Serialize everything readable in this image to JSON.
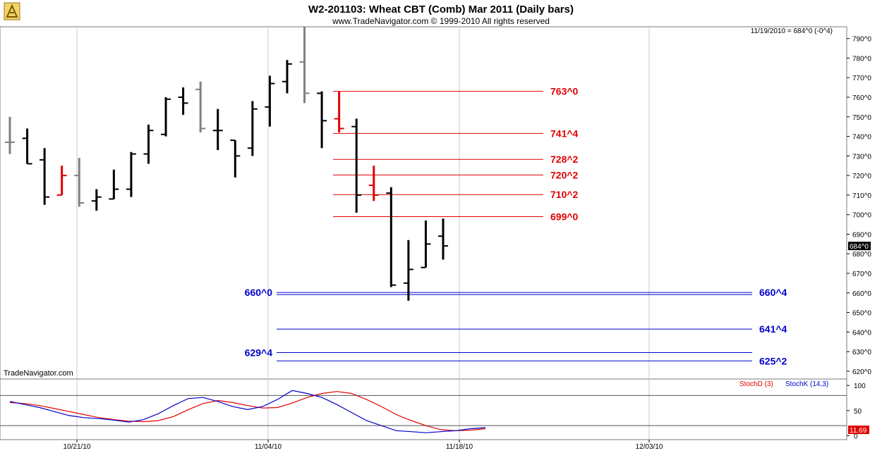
{
  "header": {
    "title": "W2-201103:  Wheat CBT (Comb) Mar 2011  (Daily bars)",
    "copyright": "www.TradeNavigator.com © 1999-2010 All rights reserved",
    "last_info": "11/19/2010 = 684^0 (-0^4)",
    "watermark": "TradeNavigator.com"
  },
  "logo_icon": "trade-navigator-logo-icon",
  "colors": {
    "up": "#000000",
    "down": "#808080",
    "red_bar": "#e00000",
    "resistance": "#e00000",
    "support": "#0000cc",
    "stoch_d": "#e00000",
    "stoch_k": "#0000cc",
    "last_tag_bg": "#000000",
    "stoch_tag_bg": "#e00000"
  },
  "chart_data": [
    {
      "type": "ohlc",
      "title": "W2-201103:  Wheat CBT (Comb) Mar 2011  (Daily bars)",
      "y_axis": {
        "ticks": [
          "790^0",
          "780^0",
          "770^0",
          "760^0",
          "750^0",
          "740^0",
          "730^0",
          "720^0",
          "710^0",
          "700^0",
          "690^0",
          "680^0",
          "670^0",
          "660^0",
          "650^0",
          "640^0",
          "630^0",
          "620^0"
        ],
        "range": [
          616,
          796
        ],
        "last_label": "684^0"
      },
      "x_axis": {
        "dates": [
          "10/21/10",
          "11/04/10",
          "11/18/10",
          "12/03/10"
        ],
        "grid": true
      },
      "bars": [
        {
          "o": 737,
          "h": 750,
          "l": 731,
          "c": 737,
          "color": "down"
        },
        {
          "o": 739,
          "h": 744,
          "l": 726,
          "c": 726,
          "color": "up"
        },
        {
          "o": 728,
          "h": 734,
          "l": 705,
          "c": 709,
          "color": "up"
        },
        {
          "o": 710,
          "h": 725,
          "l": 710,
          "c": 720,
          "color": "red"
        },
        {
          "o": 720,
          "h": 729,
          "l": 704,
          "c": 706,
          "color": "down"
        },
        {
          "o": 707,
          "h": 713,
          "l": 702,
          "c": 709,
          "color": "up"
        },
        {
          "o": 708,
          "h": 723,
          "l": 708,
          "c": 713,
          "color": "up"
        },
        {
          "o": 713,
          "h": 732,
          "l": 709,
          "c": 731,
          "color": "up"
        },
        {
          "o": 731,
          "h": 746,
          "l": 726,
          "c": 743,
          "color": "up"
        },
        {
          "o": 741,
          "h": 760,
          "l": 740,
          "c": 759,
          "color": "up"
        },
        {
          "o": 760,
          "h": 765,
          "l": 751,
          "c": 757,
          "color": "up"
        },
        {
          "o": 764,
          "h": 768,
          "l": 742,
          "c": 744,
          "color": "down"
        },
        {
          "o": 743,
          "h": 754,
          "l": 733,
          "c": 743,
          "color": "up"
        },
        {
          "o": 738,
          "h": 738,
          "l": 719,
          "c": 730,
          "color": "up"
        },
        {
          "o": 734,
          "h": 758,
          "l": 730,
          "c": 754,
          "color": "up"
        },
        {
          "o": 755,
          "h": 771,
          "l": 745,
          "c": 767,
          "color": "up"
        },
        {
          "o": 768,
          "h": 779,
          "l": 762,
          "c": 777,
          "color": "up"
        },
        {
          "o": 778,
          "h": 796,
          "l": 757,
          "c": 762,
          "color": "down"
        },
        {
          "o": 762,
          "h": 763,
          "l": 734,
          "c": 748,
          "color": "up"
        },
        {
          "o": 749,
          "h": 763,
          "l": 742,
          "c": 744,
          "color": "red"
        },
        {
          "o": 745,
          "h": 749,
          "l": 701,
          "c": 710,
          "color": "up"
        },
        {
          "o": 715,
          "h": 725,
          "l": 707,
          "c": 710,
          "color": "red"
        },
        {
          "o": 711,
          "h": 714,
          "l": 663,
          "c": 664,
          "color": "up"
        },
        {
          "o": 665,
          "h": 687,
          "l": 656,
          "c": 672,
          "color": "up"
        },
        {
          "o": 673,
          "h": 697,
          "l": 673,
          "c": 685,
          "color": "up"
        },
        {
          "o": 689,
          "h": 698,
          "l": 677,
          "c": 684,
          "color": "up"
        }
      ],
      "resistance_lines": [
        {
          "label": "763^0",
          "value": 763
        },
        {
          "label": "741^4",
          "value": 741.5
        },
        {
          "label": "728^2",
          "value": 728.25
        },
        {
          "label": "720^2",
          "value": 720.25
        },
        {
          "label": "710^2",
          "value": 710.25
        },
        {
          "label": "699^0",
          "value": 699
        }
      ],
      "support_lines": [
        {
          "label_left": "660^0",
          "label_right": "660^4",
          "value": 660.25,
          "double": true
        },
        {
          "label_left": "",
          "label_right": "641^4",
          "value": 641.5,
          "double": false
        },
        {
          "label_left": "629^4",
          "label_right": "",
          "value": 629.5,
          "double": false
        },
        {
          "label_left": "",
          "label_right": "625^2",
          "value": 625.25,
          "double": false
        }
      ]
    },
    {
      "type": "line",
      "title": "",
      "legend": [
        "StochD (3)",
        "StochK (14,3)"
      ],
      "y_axis": {
        "ticks": [
          "100",
          "50",
          "0"
        ],
        "range": [
          -5,
          110
        ],
        "reference_lines": [
          80,
          20
        ]
      },
      "last_label": "11.69",
      "series": [
        {
          "name": "StochD (3)",
          "values": [
            66,
            64,
            60,
            54,
            48,
            42,
            36,
            32,
            29,
            28,
            30,
            38,
            52,
            64,
            70,
            66,
            60,
            55,
            56,
            65,
            76,
            84,
            88,
            84,
            72,
            58,
            42,
            30,
            20,
            12,
            10,
            11,
            14
          ]
        },
        {
          "name": "StochK (14,3)",
          "values": [
            68,
            62,
            56,
            48,
            40,
            36,
            34,
            31,
            27,
            32,
            44,
            60,
            74,
            76,
            68,
            58,
            52,
            58,
            72,
            90,
            84,
            76,
            62,
            46,
            30,
            20,
            10,
            8,
            6,
            8,
            10,
            14,
            16
          ]
        }
      ]
    }
  ]
}
